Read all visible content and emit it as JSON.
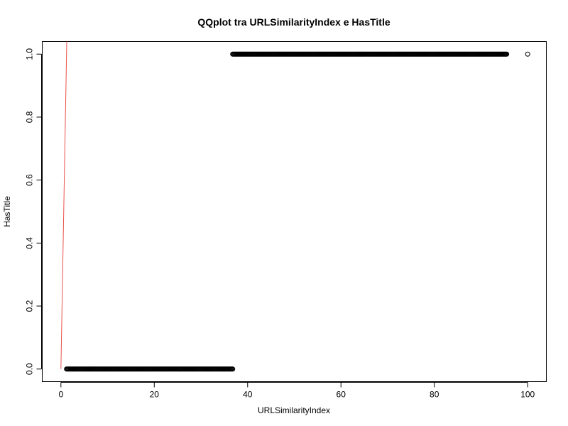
{
  "chart_data": {
    "type": "scatter",
    "title": "QQplot tra URLSimilarityIndex e HasTitle",
    "xlabel": "URLSimilarityIndex",
    "ylabel": "HasTitle",
    "xlim": [
      -4,
      104
    ],
    "ylim": [
      -0.04,
      1.04
    ],
    "xticks": [
      0,
      20,
      40,
      60,
      80,
      100
    ],
    "yticks": [
      0.0,
      0.2,
      0.4,
      0.6,
      0.8,
      1.0
    ],
    "xtick_labels": [
      "0",
      "20",
      "40",
      "60",
      "80",
      "100"
    ],
    "ytick_labels": [
      "0.0",
      "0.2",
      "0.4",
      "0.6",
      "0.8",
      "1.0"
    ],
    "series": [
      {
        "x_start": 1.2,
        "x_end": 36.8,
        "y": 0.0,
        "point_count": 240
      },
      {
        "x_start": 36.8,
        "x_end": 95.5,
        "y": 1.0,
        "point_count": 380
      },
      {
        "x": [
          100.0
        ],
        "y": [
          1.0
        ]
      }
    ],
    "reference_line": {
      "x": [
        0,
        1.25
      ],
      "y": [
        0,
        1.04
      ]
    },
    "point_color": "#000000",
    "line_color": "#e8524a",
    "grid": false,
    "legend": "none"
  }
}
